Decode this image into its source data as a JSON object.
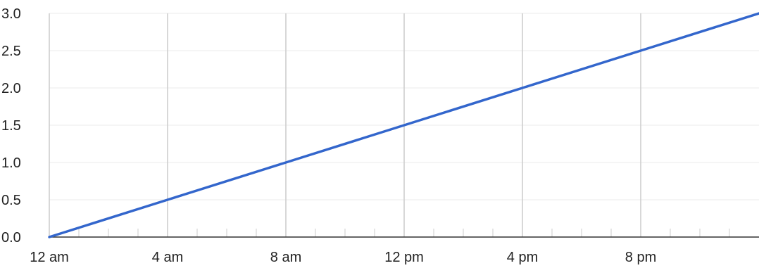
{
  "chart_data": {
    "type": "line",
    "title": "",
    "xlabel": "",
    "ylabel": "",
    "x_tick_labels": [
      "12 am",
      "4 am",
      "8 am",
      "12 pm",
      "4 pm",
      "8 pm"
    ],
    "x_tick_hours": [
      0,
      4,
      8,
      12,
      16,
      20
    ],
    "x_range_hours": [
      0,
      24
    ],
    "y_tick_labels": [
      "0.0",
      "0.5",
      "1.0",
      "1.5",
      "2.0",
      "2.5",
      "3.0"
    ],
    "y_ticks": [
      0,
      0.5,
      1.0,
      1.5,
      2.0,
      2.5,
      3.0
    ],
    "ylim": [
      0,
      3.0
    ],
    "grid": true,
    "legend": "none",
    "series": [
      {
        "color": "#3366cc",
        "x_hours": [
          0,
          4,
          8,
          12,
          16,
          20,
          24
        ],
        "values": [
          0,
          0.5,
          1.0,
          1.5,
          2.0,
          2.5,
          3.0
        ]
      }
    ]
  }
}
